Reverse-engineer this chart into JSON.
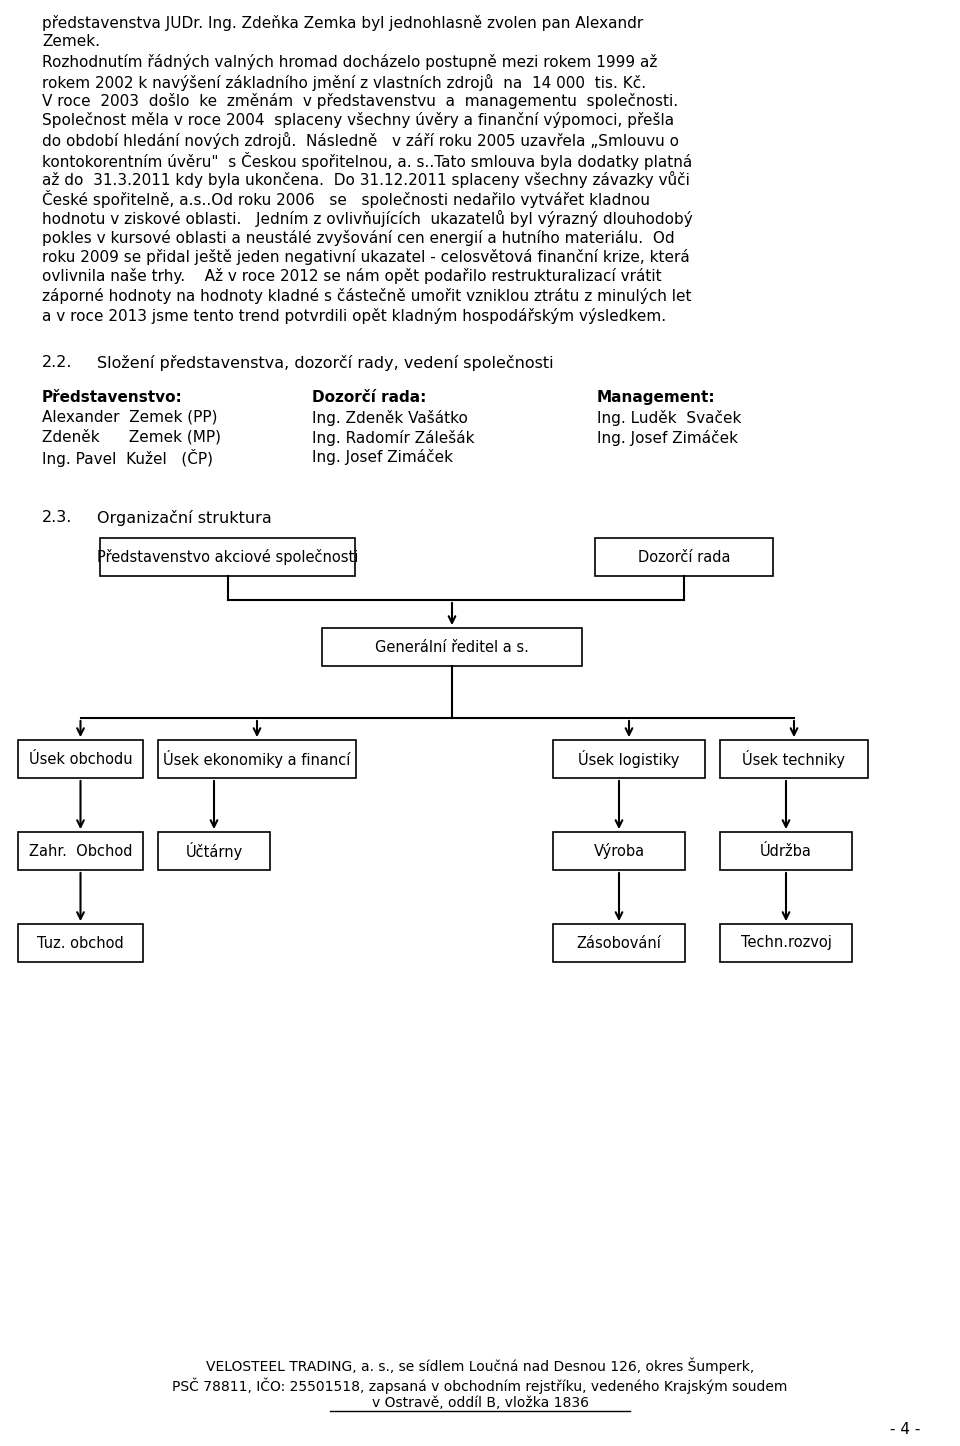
{
  "bg_color": "#ffffff",
  "text_color": "#000000",
  "body_lines": [
    "představenstva JUDr. Ing. Zdeňka Zemka byl jednohlasně zvolen pan Alexandr",
    "Zemek.",
    "Rozhodnutím řádných valných hromad docházelo postupně mezi rokem 1999 až",
    "rokem 2002 k navýšení základního jmění z vlastních zdrojů  na  14 000  tis. Kč.",
    "V roce  2003  došlo  ke  změnám  v představenstvu  a  managementu  společnosti.",
    "Společnost měla v roce 2004  splaceny všechny úvěry a finanční výpomoci, přešla",
    "do období hledání nových zdrojů.  Následně   v září roku 2005 uzavřela „Smlouvu o",
    "kontokorentním úvěru\"  s Českou spořitelnou, a. s..Tato smlouva byla dodatky platná",
    "až do  31.3.2011 kdy byla ukončena.  Do 31.12.2011 splaceny všechny závazky vůči",
    "České spořitelně, a.s..Od roku 2006   se   společnosti nedařilo vytvářet kladnou",
    "hodnotu v ziskové oblasti.   Jedním z ovlivňujících  ukazatelů byl výrazný dlouhodobý",
    "pokles v kursové oblasti a neustálé zvyšování cen energií a hutního materiálu.  Od",
    "roku 2009 se přidal ještě jeden negativní ukazatel - celosvětová finanční krize, která",
    "ovlivnila naše trhy.    Až v roce 2012 se nám opět podařilo restrukturalizací vrátit",
    "záporné hodnoty na hodnoty kladné s částečně umořit vzniklou ztrátu z minulých let",
    "a v roce 2013 jsme tento trend potvrdili opět kladným hospodářským výsledkem."
  ],
  "sec22_num": "2.2.",
  "sec22_title": "Složení představenstva, dozorčí rady, vedení společnosti",
  "col1_header": "Představenstvo:",
  "col1_members": [
    "Alexander  Zemek (PP)",
    "Zdeněk      Zemek (MP)",
    "Ing. Pavel  Kužel   (ČP)"
  ],
  "col2_header": "Dozorčí rada:",
  "col2_members": [
    "Ing. Zdeněk Vašátko",
    "Ing. Radomír Zálešák",
    "Ing. Josef Zimáček"
  ],
  "col3_header": "Management:",
  "col3_members": [
    "Ing. Luděk  Svaček",
    "Ing. Josef Zimáček"
  ],
  "sec23_num": "2.3.",
  "sec23_title": "Organizační struktura",
  "footer_line1": "VELOSTEEL TRADING, a. s., se sídlem Loučná nad Desnou 126, okres Šumperk,",
  "footer_line2": "PSČ 78811, IČO: 25501518, zapsaná v obchodním rejstříku, vedeného Krajským soudem",
  "footer_line3": "v Ostravě, oddíl B, vložka 1836",
  "footer_page": "- 4 -",
  "fs_body": 11.0,
  "fs_section": 11.5,
  "fs_col": 11.0,
  "fs_org": 10.5,
  "fs_footer": 10.0
}
